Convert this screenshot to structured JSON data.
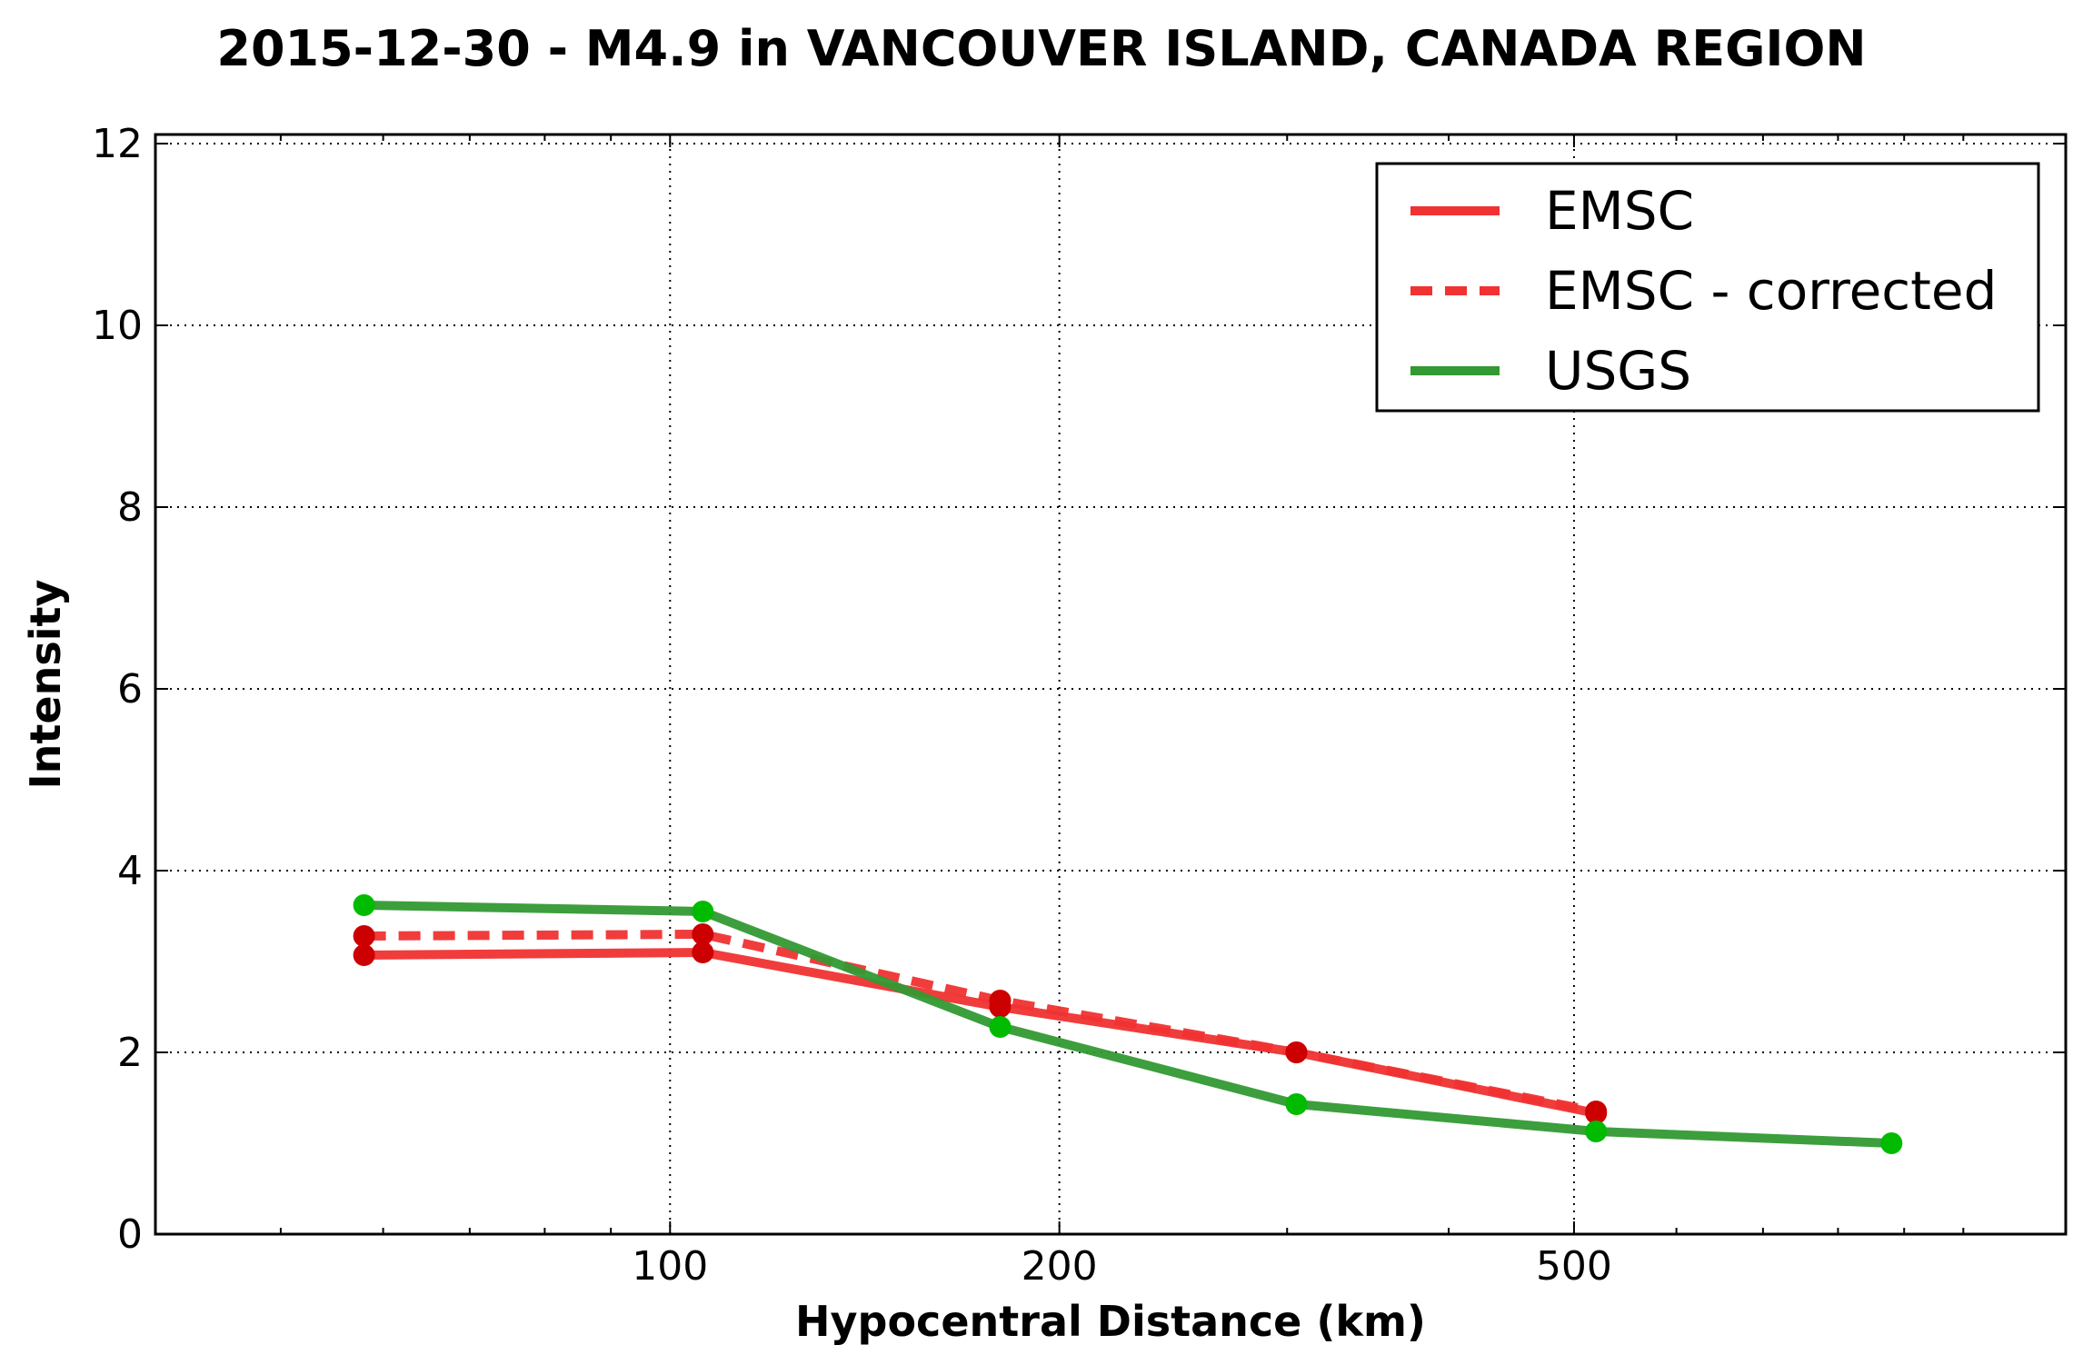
{
  "chart_data": {
    "type": "line",
    "title": "2015-12-30 - M4.9 in VANCOUVER ISLAND, CANADA REGION",
    "xlabel": "Hypocentral Distance (km)",
    "ylabel": "Intensity",
    "xscale": "log",
    "xlim": [
      40,
      1200
    ],
    "ylim": [
      0,
      12.1
    ],
    "xticks": [
      {
        "value": 100,
        "label": "100"
      },
      {
        "value": 200,
        "label": "200"
      },
      {
        "value": 500,
        "label": "500"
      }
    ],
    "yticks": [
      {
        "value": 0,
        "label": "0"
      },
      {
        "value": 2,
        "label": "2"
      },
      {
        "value": 4,
        "label": "4"
      },
      {
        "value": 6,
        "label": "6"
      },
      {
        "value": 8,
        "label": "8"
      },
      {
        "value": 10,
        "label": "10"
      },
      {
        "value": 12,
        "label": "12"
      }
    ],
    "grid": true,
    "legend_position": "top-right",
    "series": [
      {
        "name": "EMSC",
        "style": "solid",
        "color": "#f03232",
        "marker_color": "#cc0000",
        "x": [
          58,
          106,
          180,
          305,
          520
        ],
        "y": [
          3.07,
          3.1,
          2.5,
          2.0,
          1.33
        ]
      },
      {
        "name": "EMSC - corrected",
        "style": "dashed",
        "color": "#f03232",
        "marker_color": "#cc0000",
        "x": [
          58,
          106,
          180,
          305,
          520
        ],
        "y": [
          3.28,
          3.3,
          2.57,
          2.0,
          1.35
        ]
      },
      {
        "name": "USGS",
        "style": "solid",
        "color": "#339933",
        "marker_color": "#00bb00",
        "x": [
          58,
          106,
          180,
          305,
          520,
          880
        ],
        "y": [
          3.62,
          3.55,
          2.28,
          1.43,
          1.13,
          1.0
        ]
      }
    ]
  }
}
